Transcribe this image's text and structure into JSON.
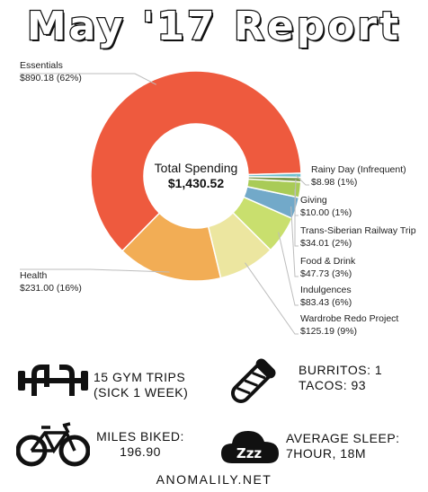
{
  "title": "May '17 Report",
  "chart_data": {
    "type": "pie",
    "variant": "donut",
    "center_label": "Total Spending",
    "center_value": "$1,430.52",
    "categories": [
      "Essentials",
      "Health",
      "Wardrobe Redo Project",
      "Indulgences",
      "Food & Drink",
      "Trans-Siberian Railway Trip",
      "Giving",
      "Rainy Day (Infrequent)"
    ],
    "values": [
      890.18,
      231.0,
      125.19,
      83.43,
      47.73,
      34.01,
      10.0,
      8.98
    ],
    "value_labels": [
      "$890.18 (62%)",
      "$231.00 (16%)",
      "$125.19 (9%)",
      "$83.43 (6%)",
      "$47.73 (3%)",
      "$34.01 (2%)",
      "$10.00 (1%)",
      "$8.98 (1%)"
    ],
    "colors": [
      "#ee5a3e",
      "#f2ad55",
      "#ece6a0",
      "#c9df6e",
      "#72a9c9",
      "#a9cb57",
      "#7f9a4b",
      "#6fc0cf"
    ]
  },
  "stats": {
    "gym": {
      "line1": "15 GYM TRIPS",
      "line2": "(SICK 1 WEEK)",
      "icon": "kettlebell-icon"
    },
    "food": {
      "line1": "BURRITOS: 1",
      "line2": "TACOS: 93",
      "icon": "burrito-icon"
    },
    "bike": {
      "line1": "MILES BIKED:",
      "line2": "196.90",
      "icon": "bicycle-icon"
    },
    "sleep": {
      "line1": "AVERAGE SLEEP:",
      "line2": "7HOUR, 18M",
      "icon": "sleep-cloud-icon"
    }
  },
  "footer": "ANOMALILY.NET"
}
